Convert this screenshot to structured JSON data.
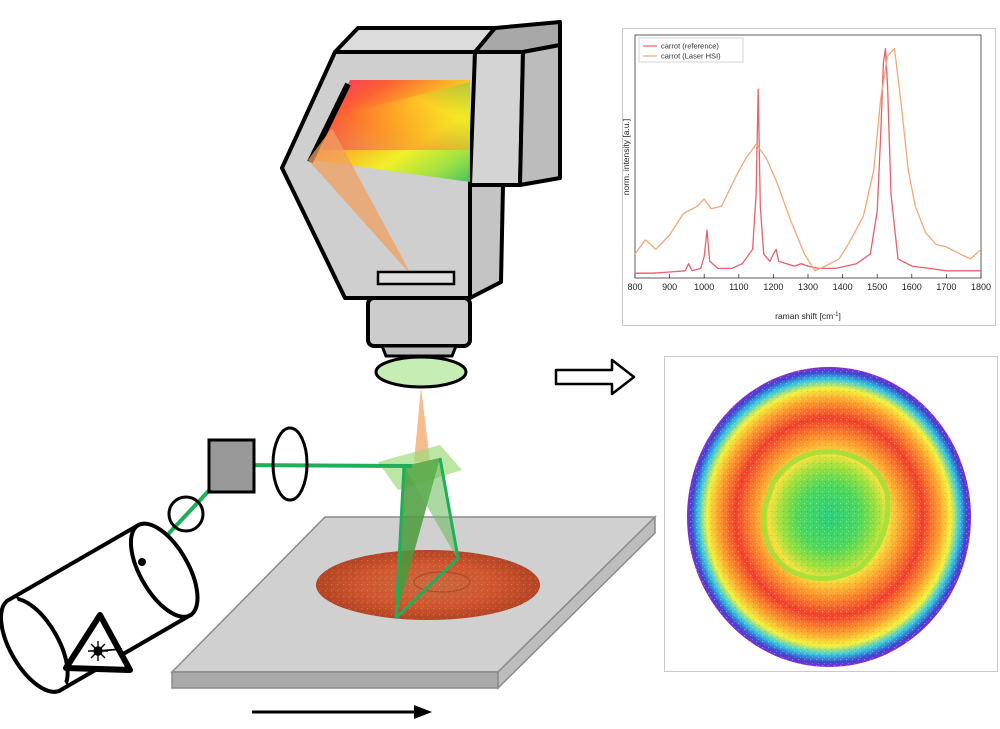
{
  "chart_data": {
    "type": "line",
    "title": "",
    "xlabel": "raman shift [cm",
    "xlabel_sup": "-1",
    "xlabel_end": "]",
    "ylabel": "norm. intensity [a.u.]",
    "xlim": [
      800,
      1800
    ],
    "ylim": [
      0,
      1
    ],
    "xticks": [
      "800",
      "900",
      "1000",
      "1100",
      "1200",
      "1300",
      "1400",
      "1500",
      "1600",
      "1700",
      "1800"
    ],
    "legend_position": "top-left",
    "series": [
      {
        "name": "carrot (reference)",
        "color": "#e8606a",
        "points": [
          [
            800,
            0.02
          ],
          [
            850,
            0.02
          ],
          [
            900,
            0.025
          ],
          [
            945,
            0.03
          ],
          [
            955,
            0.06
          ],
          [
            965,
            0.03
          ],
          [
            990,
            0.04
          ],
          [
            1000,
            0.09
          ],
          [
            1008,
            0.2
          ],
          [
            1016,
            0.07
          ],
          [
            1040,
            0.04
          ],
          [
            1080,
            0.04
          ],
          [
            1110,
            0.06
          ],
          [
            1140,
            0.12
          ],
          [
            1150,
            0.35
          ],
          [
            1156,
            0.79
          ],
          [
            1162,
            0.3
          ],
          [
            1172,
            0.1
          ],
          [
            1190,
            0.07
          ],
          [
            1200,
            0.1
          ],
          [
            1208,
            0.12
          ],
          [
            1215,
            0.07
          ],
          [
            1260,
            0.05
          ],
          [
            1280,
            0.06
          ],
          [
            1300,
            0.05
          ],
          [
            1330,
            0.04
          ],
          [
            1380,
            0.04
          ],
          [
            1440,
            0.06
          ],
          [
            1480,
            0.1
          ],
          [
            1500,
            0.28
          ],
          [
            1510,
            0.6
          ],
          [
            1518,
            0.9
          ],
          [
            1524,
            0.96
          ],
          [
            1530,
            0.8
          ],
          [
            1540,
            0.35
          ],
          [
            1560,
            0.08
          ],
          [
            1600,
            0.05
          ],
          [
            1650,
            0.04
          ],
          [
            1700,
            0.03
          ],
          [
            1750,
            0.03
          ],
          [
            1800,
            0.03
          ]
        ]
      },
      {
        "name": "carrot (Laser HSI)",
        "color": "#f4a777",
        "points": [
          [
            800,
            0.1
          ],
          [
            830,
            0.16
          ],
          [
            860,
            0.12
          ],
          [
            900,
            0.18
          ],
          [
            940,
            0.27
          ],
          [
            980,
            0.3
          ],
          [
            1000,
            0.33
          ],
          [
            1020,
            0.29
          ],
          [
            1050,
            0.3
          ],
          [
            1090,
            0.42
          ],
          [
            1120,
            0.5
          ],
          [
            1150,
            0.56
          ],
          [
            1180,
            0.5
          ],
          [
            1210,
            0.4
          ],
          [
            1250,
            0.24
          ],
          [
            1290,
            0.1
          ],
          [
            1320,
            0.03
          ],
          [
            1350,
            0.05
          ],
          [
            1390,
            0.08
          ],
          [
            1420,
            0.15
          ],
          [
            1460,
            0.26
          ],
          [
            1490,
            0.45
          ],
          [
            1510,
            0.75
          ],
          [
            1530,
            0.93
          ],
          [
            1550,
            0.96
          ],
          [
            1570,
            0.72
          ],
          [
            1590,
            0.45
          ],
          [
            1610,
            0.3
          ],
          [
            1640,
            0.19
          ],
          [
            1670,
            0.14
          ],
          [
            1700,
            0.13
          ],
          [
            1740,
            0.1
          ],
          [
            1770,
            0.08
          ],
          [
            1800,
            0.12
          ]
        ]
      }
    ]
  },
  "colors": {
    "reference": "#e8606a",
    "laser_hsi": "#f4a777",
    "laser_beam": "#1fae5a",
    "sample": "#c8542c",
    "stage_plate": "#cfcfcf"
  },
  "icons": {
    "laser_warning": "laser-warning-icon",
    "flow_arrow": "hollow-right-arrow-icon",
    "scan_direction": "scan-direction-arrow-icon"
  }
}
